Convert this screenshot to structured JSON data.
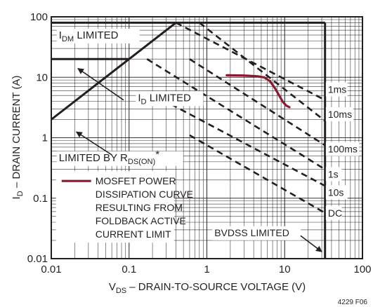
{
  "chart_data": {
    "type": "line",
    "x_scale": "log",
    "y_scale": "log",
    "xlim": [
      0.01,
      100
    ],
    "ylim": [
      0.01,
      100
    ],
    "grid": true,
    "xlabel": {
      "main": "V",
      "sub": "DS",
      "rest": " – DRAIN-TO-SOURCE VOLTAGE (V)"
    },
    "ylabel": {
      "main": "I",
      "sub": "D",
      "rest": " – DRAIN CURRENT (A)"
    },
    "x_ticks": [
      {
        "value": 0.01,
        "label": "0.01"
      },
      {
        "value": 0.1,
        "label": "0.1"
      },
      {
        "value": 1,
        "label": "1"
      },
      {
        "value": 10,
        "label": "10"
      },
      {
        "value": 100,
        "label": "100"
      }
    ],
    "y_ticks": [
      {
        "value": 0.01,
        "label": "0.01"
      },
      {
        "value": 0.1,
        "label": "0.1"
      },
      {
        "value": 1,
        "label": "1"
      },
      {
        "value": 10,
        "label": "10"
      },
      {
        "value": 100,
        "label": "100"
      }
    ],
    "boundary_lines": [
      {
        "id": "idm-limit",
        "points": [
          [
            0.01,
            80
          ],
          [
            33,
            80
          ]
        ]
      },
      {
        "id": "id-limit",
        "points": [
          [
            0.01,
            20
          ],
          [
            0.1,
            20
          ]
        ]
      },
      {
        "id": "rdson-limit",
        "points": [
          [
            0.01,
            2
          ],
          [
            0.4,
            80
          ]
        ]
      },
      {
        "id": "bvdss-limit",
        "points": [
          [
            33,
            0.01
          ],
          [
            33,
            80
          ]
        ]
      }
    ],
    "soa_lines": [
      {
        "name": "1ms",
        "points": [
          [
            0.4,
            80
          ],
          [
            33,
            4.2
          ]
        ]
      },
      {
        "name": "10ms",
        "points": [
          [
            0.8,
            80
          ],
          [
            33,
            1.9
          ]
        ]
      },
      {
        "name": "100ms",
        "points": [
          [
            0.6,
            20
          ],
          [
            33,
            0.75
          ]
        ]
      },
      {
        "name": "1s",
        "points": [
          [
            0.17,
            20
          ],
          [
            33,
            0.3
          ]
        ]
      },
      {
        "name": "10s",
        "points": [
          [
            0.2,
            5.2
          ],
          [
            33,
            0.16
          ]
        ]
      },
      {
        "name": "DC",
        "points": [
          [
            0.6,
            1.1
          ],
          [
            33,
            0.057
          ]
        ]
      }
    ],
    "soa_labels": [
      {
        "text": "1ms",
        "x": 36,
        "y": 6.3
      },
      {
        "text": "10ms",
        "x": 36,
        "y": 2.45
      },
      {
        "text": "100ms",
        "x": 36,
        "y": 0.65
      },
      {
        "text": "1s",
        "x": 36,
        "y": 0.25
      },
      {
        "text": "10s",
        "x": 36,
        "y": 0.125
      },
      {
        "text": "DC",
        "x": 36,
        "y": 0.057
      }
    ],
    "series": [
      {
        "name": "MOSFET POWER DISSIPATION CURVE RESULTING FROM FOLDBACK ACTIVE CURRENT LIMIT",
        "color": "#8b1a2e",
        "points": [
          [
            1.8,
            10.8
          ],
          [
            3.0,
            10.7
          ],
          [
            4.5,
            10.4
          ],
          [
            5.5,
            9.9
          ],
          [
            6.5,
            8.6
          ],
          [
            7.5,
            6.6
          ],
          [
            8.5,
            5.0
          ],
          [
            9.5,
            3.9
          ],
          [
            10.5,
            3.4
          ],
          [
            11.5,
            3.2
          ]
        ]
      }
    ],
    "annotations": {
      "idm": {
        "main": "I",
        "sub": "DM",
        "rest": " LIMITED",
        "x": 0.0125,
        "y": 50
      },
      "id": {
        "main": "I",
        "sub": "D",
        "rest": " LIMITED",
        "x": 0.13,
        "y": 4.6
      },
      "rds": {
        "main": "LIMITED BY R",
        "sub": "DS(ON)",
        "rest": "*",
        "x": 0.0125,
        "y": 0.47
      },
      "bvdss": {
        "text": "BVDSS LIMITED",
        "x": 1.25,
        "y": 0.027
      }
    },
    "arrows": [
      {
        "from": [
          0.085,
          4.2
        ],
        "to": [
          0.022,
          14
        ]
      },
      {
        "from": [
          0.06,
          0.52
        ],
        "to": [
          0.021,
          1.25
        ]
      },
      {
        "from": [
          16,
          0.024
        ],
        "to": [
          30,
          0.013
        ]
      }
    ],
    "legend": {
      "lines": [
        "MOSFET POWER",
        "DISSIPATION CURVE",
        "RESULTING FROM",
        "FOLDBACK ACTIVE",
        "CURRENT LIMIT"
      ]
    },
    "figure_id": "4229 F06"
  }
}
